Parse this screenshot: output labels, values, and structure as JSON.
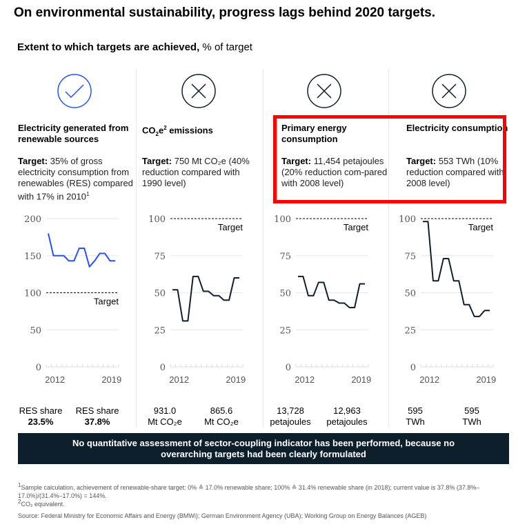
{
  "title": "On environmental sustainability, progress lags behind 2020 targets.",
  "subtitle": {
    "bold": "Extent to which targets are achieved,",
    "normal": " % of target"
  },
  "colors": {
    "achieved": "#2251ff",
    "missed": "#0e1f2c",
    "highlight": "#ff0000",
    "grid": "#e6e6e6"
  },
  "columns": [
    {
      "status_icon": "check-circle-icon",
      "title": "Electricity generated from renewable sources",
      "target_label": "Target:",
      "target_text": " 35% of gross electricity consumption from renewables (RES) compared with 17% in 2010",
      "target_sup": "1",
      "start_value": [
        "RES share",
        "23.5%"
      ],
      "end_value": [
        "RES share",
        "37.8%"
      ]
    },
    {
      "status_icon": "x-circle-icon",
      "title_pre": "CO",
      "title_sub": "2",
      "title_e": "e",
      "title_sup": "2",
      "title_post": " emissions",
      "target_label": "Target:",
      "target_text": " 750 Mt CO₂e (40% reduction compared with 1990 level)",
      "start_value": [
        "931.0",
        "Mt CO₂e"
      ],
      "end_value": [
        "865.6",
        "Mt CO₂e"
      ]
    },
    {
      "status_icon": "x-circle-icon",
      "title": "Primary energy consumption",
      "target_label": "Target:",
      "target_text": " 11,454 petajoules (20% reduction com-pared with 2008 level)",
      "start_value": [
        "13,728",
        "petajoules"
      ],
      "end_value": [
        "12,963",
        "petajoules"
      ]
    },
    {
      "status_icon": "x-circle-icon",
      "title": "Electricity consumption",
      "target_label": "Target:",
      "target_text": " 553 TWh (10% reduction compared with 2008 level)",
      "start_value": [
        "595",
        "TWh"
      ],
      "end_value": [
        "595",
        "TWh"
      ]
    }
  ],
  "chart_data": [
    {
      "type": "line",
      "title": "Electricity generated from renewable sources",
      "ylim": [
        0,
        200
      ],
      "yticks": [
        0,
        50,
        100,
        150,
        200
      ],
      "x": [
        0,
        1,
        2,
        3,
        4,
        5,
        6,
        7,
        8,
        9,
        10,
        11,
        12,
        13
      ],
      "values": [
        180,
        150,
        150,
        150,
        143,
        143,
        160,
        160,
        135,
        143,
        153,
        153,
        143,
        143
      ],
      "target": 100,
      "target_label": "Target",
      "xticks": [
        {
          "x": 1.3,
          "label": "2012"
        },
        {
          "x": 12.3,
          "label": "2019"
        }
      ],
      "color": "#2251ff"
    },
    {
      "type": "line",
      "title": "CO2e emissions",
      "ylim": [
        0,
        100
      ],
      "yticks": [
        0,
        25,
        50,
        75,
        100
      ],
      "x": [
        0,
        1,
        2,
        3,
        4,
        5,
        6,
        7,
        8,
        9,
        10,
        11,
        12,
        13
      ],
      "values": [
        52,
        52,
        31,
        31,
        61,
        61,
        51,
        51,
        48,
        48,
        45,
        45,
        60,
        60
      ],
      "target": 100,
      "target_label": "Target",
      "xticks": [
        {
          "x": 1.3,
          "label": "2012"
        },
        {
          "x": 12.3,
          "label": "2019"
        }
      ],
      "color": "#0e1f2c"
    },
    {
      "type": "line",
      "title": "Primary energy consumption",
      "ylim": [
        0,
        100
      ],
      "yticks": [
        0,
        25,
        50,
        75,
        100
      ],
      "x": [
        0,
        1,
        2,
        3,
        4,
        5,
        6,
        7,
        8,
        9,
        10,
        11,
        12,
        13
      ],
      "values": [
        61,
        61,
        48,
        48,
        57,
        57,
        45,
        45,
        43,
        43,
        40,
        40,
        56,
        56
      ],
      "target": 100,
      "target_label": "Target",
      "xticks": [
        {
          "x": 1.3,
          "label": "2012"
        },
        {
          "x": 12.3,
          "label": "2019"
        }
      ],
      "color": "#0e1f2c"
    },
    {
      "type": "line",
      "title": "Electricity consumption",
      "ylim": [
        0,
        100
      ],
      "yticks": [
        0,
        25,
        50,
        75,
        100
      ],
      "x": [
        0,
        1,
        2,
        3,
        4,
        5,
        6,
        7,
        8,
        9,
        10,
        11,
        12,
        13
      ],
      "values": [
        98,
        98,
        58,
        58,
        73,
        73,
        58,
        58,
        42,
        42,
        34,
        34,
        38,
        38
      ],
      "target": 100,
      "target_label": "Target",
      "xticks": [
        {
          "x": 1.3,
          "label": "2012"
        },
        {
          "x": 12.3,
          "label": "2019"
        }
      ],
      "color": "#0e1f2c"
    }
  ],
  "banner": "No quantitative assessment of sector-coupling indicator has been performed, because no overarching targets had been clearly formulated",
  "footnotes": {
    "f1_sup": "1",
    "f1": "Sample calculation, achievement of renewable-share target: 0% ≙ 17.0% renewable share; 100% ≙ 31.4% renewable share (in 2018); current value is 37.8% (37.8%–17.0%)/(31.4%–17.0%) = 144%.",
    "f2_sup": "2",
    "f2": "CO₂ equivalent.",
    "source": "Source: Federal Ministry for Economic Affairs and Energy (BMWi); German Environment Agency (UBA); Working Group on Energy Balances (AGEB)"
  }
}
